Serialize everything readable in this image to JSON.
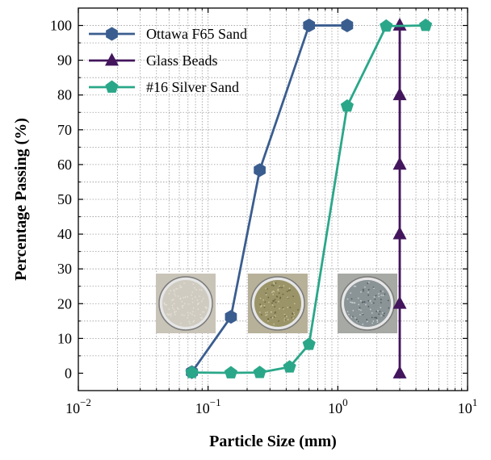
{
  "chart_data": {
    "type": "line",
    "xscale": "log",
    "xlim": [
      0.01,
      10
    ],
    "ylim": [
      -5,
      105
    ],
    "xlabel": "Particle Size (mm)",
    "ylabel": "Percentage Passing (%)",
    "x_ticks": [
      {
        "value": 0.01,
        "base": "10",
        "exp": "−2"
      },
      {
        "value": 0.1,
        "base": "10",
        "exp": "−1"
      },
      {
        "value": 1,
        "base": "10",
        "exp": "0"
      },
      {
        "value": 10,
        "base": "10",
        "exp": "1"
      }
    ],
    "y_ticks": [
      0,
      10,
      20,
      30,
      40,
      50,
      60,
      70,
      80,
      90,
      100
    ],
    "grid": true,
    "legend_position": "top-left",
    "series": [
      {
        "name": "Ottawa F65 Sand",
        "color": "#3a5d8f",
        "marker": "hexagon",
        "x": [
          0.075,
          0.15,
          0.25,
          0.6,
          1.18
        ],
        "y": [
          0.3,
          16.2,
          58.4,
          100,
          100
        ]
      },
      {
        "name": "Glass Beads",
        "color": "#43155c",
        "marker": "triangle",
        "x": [
          3.0,
          3.0,
          3.0,
          3.0,
          3.0,
          3.0
        ],
        "y": [
          0,
          20,
          40,
          60,
          80,
          100
        ]
      },
      {
        "name": "#16 Silver Sand",
        "color": "#2aa789",
        "marker": "pentagon",
        "x": [
          0.075,
          0.15,
          0.25,
          0.425,
          0.6,
          1.18,
          2.36,
          4.75
        ],
        "y": [
          0.2,
          0.1,
          0.2,
          1.8,
          8.3,
          76.8,
          99.8,
          100
        ]
      }
    ],
    "inset_images": [
      {
        "name": "ottawa-sand-sample-photo",
        "tone": "#cfcbc0"
      },
      {
        "name": "silver-sand-sample-photo",
        "tone": "#9a9468"
      },
      {
        "name": "glass-beads-sample-photo",
        "tone": "#8a9396"
      }
    ]
  }
}
